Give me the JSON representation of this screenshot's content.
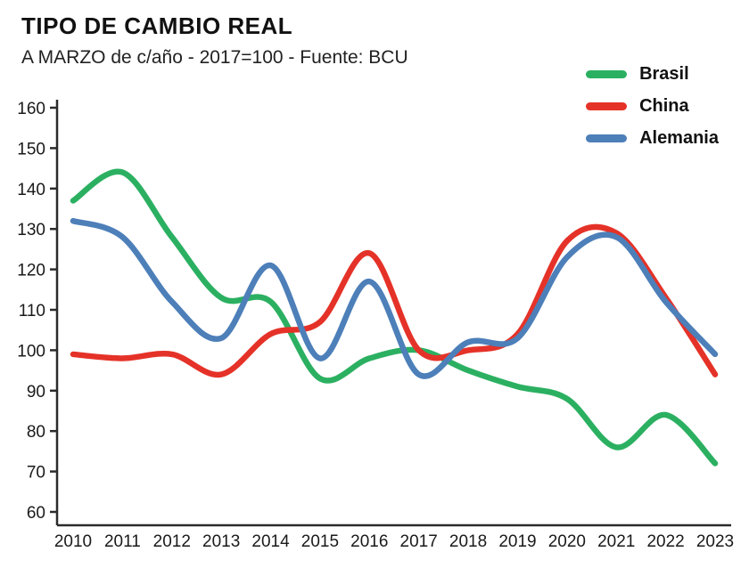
{
  "chart_data": {
    "type": "line",
    "title": "TIPO DE CAMBIO REAL",
    "subtitle": "A MARZO de c/año - 2017=100 - Fuente: BCU",
    "x": [
      2010,
      2011,
      2012,
      2013,
      2014,
      2015,
      2016,
      2017,
      2018,
      2019,
      2020,
      2021,
      2022,
      2023
    ],
    "series": [
      {
        "name": "Brasil",
        "color": "#2bb061",
        "values": [
          137,
          144,
          128,
          113,
          112,
          93,
          98,
          100,
          95,
          91,
          88,
          76,
          84,
          72
        ]
      },
      {
        "name": "China",
        "color": "#e53228",
        "values": [
          99,
          98,
          99,
          94,
          104,
          107,
          124,
          100,
          100,
          104,
          127,
          129,
          113,
          94
        ]
      },
      {
        "name": "Alemania",
        "color": "#4d7fb9",
        "values": [
          132,
          128,
          112,
          103,
          121,
          98,
          117,
          94,
          102,
          103,
          123,
          128,
          112,
          99
        ]
      }
    ],
    "ylim": [
      60,
      160
    ],
    "ytick_step": 10,
    "grid": false,
    "legend_position": "top-right",
    "axis_color": "#2b2b2b"
  }
}
